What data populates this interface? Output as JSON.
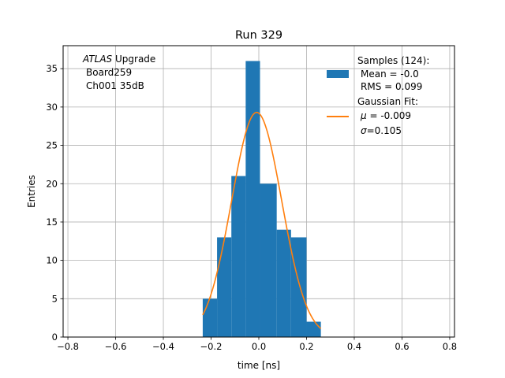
{
  "chart_data": {
    "type": "bar",
    "title": "Run 329",
    "xlabel": "time [ns]",
    "ylabel": "Entries",
    "xlim": [
      -0.82,
      0.82
    ],
    "ylim": [
      0,
      38
    ],
    "grid": true,
    "x_ticks": [
      -0.8,
      -0.6,
      -0.4,
      -0.2,
      0.0,
      0.2,
      0.4,
      0.6,
      0.8
    ],
    "x_tick_labels": [
      "−0.8",
      "−0.6",
      "−0.4",
      "−0.2",
      "0.0",
      "0.2",
      "0.4",
      "0.6",
      "0.8"
    ],
    "y_ticks": [
      0,
      5,
      10,
      15,
      20,
      25,
      30,
      35
    ],
    "y_tick_labels": [
      "0",
      "5",
      "10",
      "15",
      "20",
      "25",
      "30",
      "35"
    ],
    "histogram": {
      "name": "Samples (124):",
      "color": "#1f77b4",
      "bins": [
        {
          "x0": -0.235,
          "x1": -0.175,
          "count": 5
        },
        {
          "x0": -0.175,
          "x1": -0.115,
          "count": 13
        },
        {
          "x0": -0.115,
          "x1": -0.055,
          "count": 21
        },
        {
          "x0": -0.055,
          "x1": 0.005,
          "count": 36
        },
        {
          "x0": 0.005,
          "x1": 0.075,
          "count": 20
        },
        {
          "x0": 0.075,
          "x1": 0.135,
          "count": 14
        },
        {
          "x0": 0.135,
          "x1": 0.2,
          "count": 13
        },
        {
          "x0": 0.2,
          "x1": 0.26,
          "count": 2
        }
      ]
    },
    "fit": {
      "name": "Gaussian Fit:",
      "color": "#ff7f0e",
      "mu": -0.009,
      "sigma": 0.105,
      "amplitude": 29.3,
      "x_range": [
        -0.235,
        0.26
      ]
    },
    "annotation": {
      "experiment": "ATLAS",
      "line1_rest": " Upgrade",
      "line2": "Board259",
      "line3": "Ch001 35dB"
    },
    "legend": {
      "position": "top-right",
      "hist_title": "Samples (124):",
      "hist_mean": "Mean = -0.0",
      "hist_rms": "RMS = 0.099",
      "fit_title": "Gaussian Fit:",
      "fit_mu_symbol": "μ",
      "fit_mu_rest": " = -0.009",
      "fit_sigma_symbol": "σ",
      "fit_sigma_rest": "=0.105"
    }
  }
}
